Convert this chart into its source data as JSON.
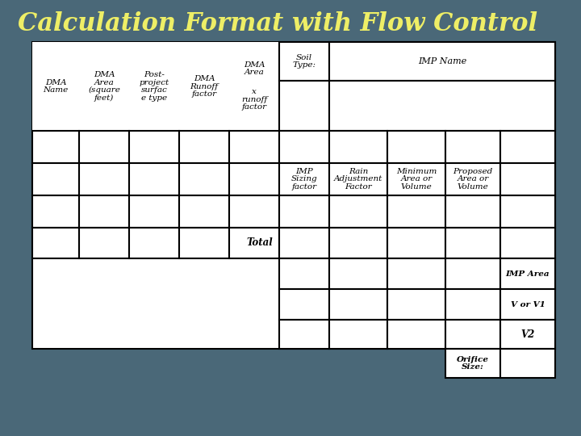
{
  "title": "Calculation Format with Flow Control",
  "title_color": "#EEEE66",
  "title_fontsize": 22,
  "bg_color_top": "#4a6878",
  "bg_color": "#4a6878",
  "table_bg": "#ffffff",
  "font_style": "italic",
  "font_family": "serif",
  "label_dma_name": [
    "DMA",
    "Name"
  ],
  "label_dma_area": [
    "DMA",
    "Area",
    "(square",
    "feet)"
  ],
  "label_post_project": [
    "Post-",
    "project",
    "surfac",
    "e type"
  ],
  "label_dma_runoff": [
    "DMA",
    "Runoff",
    "factor"
  ],
  "label_dma_area_x": [
    "DMA",
    "Area"
  ],
  "label_dma_area_x2": [
    "x",
    "runoff",
    "factor"
  ],
  "label_soil": [
    "Soil",
    "Type:"
  ],
  "label_imp_name": "IMP Name",
  "label_imp_sizing": [
    "IMP",
    "Sizing",
    "factor"
  ],
  "label_rain": [
    "Rain",
    "Adjustment",
    "Factor"
  ],
  "label_min_area": [
    "Minimum",
    "Area or",
    "Volume"
  ],
  "label_proposed": [
    "Proposed",
    "Area or",
    "Volume"
  ],
  "label_total": "Total",
  "label_imp_area": "IMP Area",
  "label_v_or_v1": "V or V1",
  "label_v2": "V2",
  "label_orifice": [
    "Orifice",
    "Size:"
  ]
}
